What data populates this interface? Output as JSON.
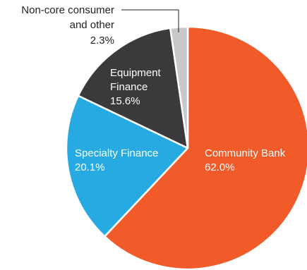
{
  "chart_data": {
    "type": "pie",
    "title": "",
    "slices": [
      {
        "name": "Community Bank",
        "value": 62.0,
        "label_name": "Community Bank",
        "label_value": "62.0%",
        "color": "#f15a29",
        "label_color": "#ffffff"
      },
      {
        "name": "Specialty Finance",
        "value": 20.1,
        "label_name": "Specialty Finance",
        "label_value": "20.1%",
        "color": "#27aae1",
        "label_color": "#ffffff"
      },
      {
        "name": "Equipment Finance",
        "value": 15.6,
        "label_name_lines": [
          "Equipment",
          "Finance"
        ],
        "label_value": "15.6%",
        "color": "#3a3a3c",
        "label_color": "#ffffff"
      },
      {
        "name": "Non-core consumer and other",
        "value": 2.3,
        "label_name_lines": [
          "Non-core consumer",
          "and other"
        ],
        "label_value": "2.3%",
        "color": "#c7c8ca",
        "label_color": "#231f20",
        "callout": true
      }
    ],
    "slice_border_color": "#ffffff",
    "callout_line_color": "#231f20",
    "legend": "none"
  }
}
